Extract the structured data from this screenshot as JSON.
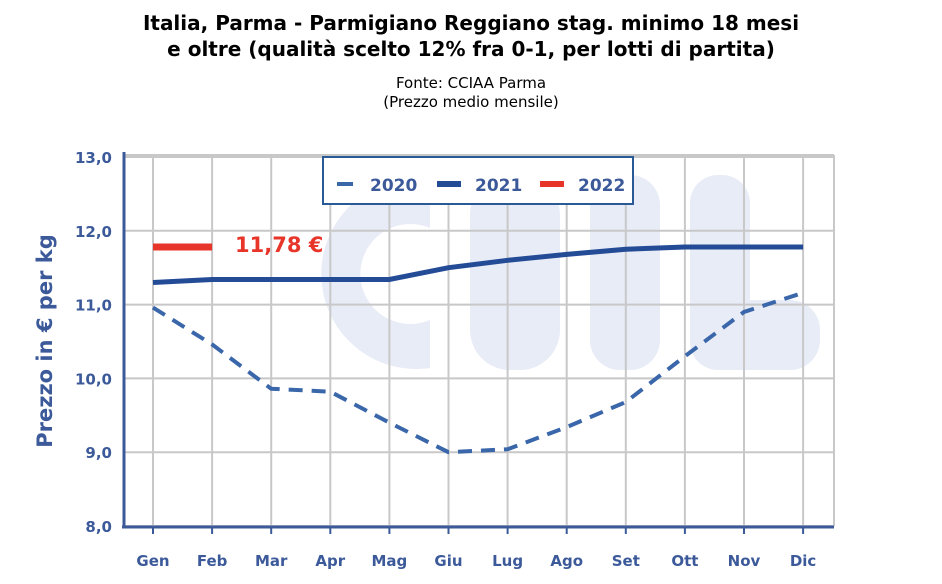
{
  "chart_data": {
    "type": "line",
    "title": "Italia, Parma - Parmigiano Reggiano stag. minimo 18 mesi e oltre (qualità scelto 12% fra 0-1, per lotti di partita)",
    "title_line1": "Italia, Parma - Parmigiano Reggiano stag. minimo 18 mesi",
    "title_line2": "e oltre (qualità scelto 12% fra 0-1, per lotti di partita)",
    "source": "Fonte: CCIAA Parma",
    "subtitle": "(Prezzo medio mensile)",
    "ylabel": "Prezzo in € per kg",
    "xlabel": "",
    "ylim": [
      8,
      13
    ],
    "yticks": [
      "8,0",
      "9,0",
      "10,0",
      "11,0",
      "12,0",
      "13,0"
    ],
    "categories": [
      "Gen",
      "Feb",
      "Mar",
      "Apr",
      "Mag",
      "Giu",
      "Lug",
      "Ago",
      "Set",
      "Ott",
      "Nov",
      "Dic"
    ],
    "grid": true,
    "legend_position": "top-center",
    "series": [
      {
        "name": "2020",
        "style": "dashed",
        "color": "#3a66aa",
        "values": [
          10.96,
          10.46,
          9.86,
          9.82,
          9.4,
          9.0,
          9.04,
          9.34,
          9.68,
          10.3,
          10.9,
          11.16
        ]
      },
      {
        "name": "2021",
        "style": "solid",
        "color": "#244b96",
        "values": [
          11.3,
          11.34,
          11.34,
          11.34,
          11.34,
          11.5,
          11.6,
          11.68,
          11.75,
          11.78,
          11.78,
          11.78
        ]
      },
      {
        "name": "2022",
        "style": "solid",
        "color": "#e8352a",
        "values": [
          11.78,
          11.78,
          null,
          null,
          null,
          null,
          null,
          null,
          null,
          null,
          null,
          null
        ]
      }
    ],
    "annotation": "11,78 €",
    "colors": {
      "axis": "#3c5a9a",
      "grid": "#c8c8c8",
      "watermark": "#e8ecf7",
      "annotation": "#e8352a"
    }
  }
}
